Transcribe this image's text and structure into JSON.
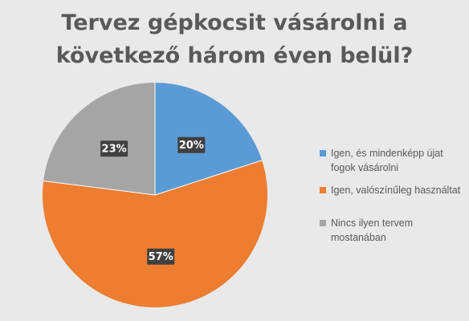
{
  "chart_data": {
    "type": "pie",
    "title": "Tervez gépkocsit vásárolni a következő három éven belül?",
    "title_lines": [
      "Tervez gépkocsit vásárolni a",
      "következő három éven belül?"
    ],
    "categories": [
      "Igen, és mindenképp újat fogok vásárolni",
      "Igen, valószínűleg használtat",
      "Nincs ilyen tervem mostanában"
    ],
    "values": [
      20,
      57,
      23
    ],
    "data_labels": [
      "20%",
      "57%",
      "23%"
    ],
    "colors": [
      "#5b9bd5",
      "#ed7d31",
      "#a5a5a5"
    ],
    "legend_position": "right",
    "background": "#e9e9e9"
  },
  "legend": {
    "items": [
      {
        "label": "Igen, és mindenképp újat fogok vásárolni",
        "color": "#5b9bd5"
      },
      {
        "label": "Igen, valószínűleg használtat",
        "color": "#ed7d31"
      },
      {
        "label": "Nincs ilyen tervem mostanában",
        "color": "#a5a5a5"
      }
    ]
  }
}
